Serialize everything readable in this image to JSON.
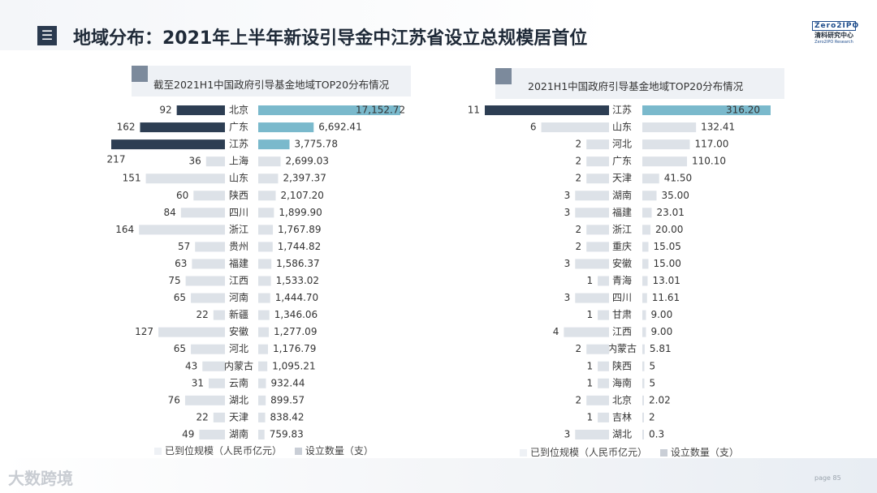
{
  "header": {
    "menu_icon": "menu-icon",
    "title": "地域分布：2021年上半年新设引导金中江苏省设立总规模居首位",
    "logo_line1": "Zero2IPO",
    "logo_line2": "清科研究中心",
    "logo_line3": "Zero2IPO Research"
  },
  "footer": {
    "brand": "大数跨境",
    "page": "page  85"
  },
  "colors": {
    "highlight_dark": "#2d3e53",
    "highlight_light": "#7ab9cc",
    "plain": "#dde2e8",
    "panel_bg": "#eef1f5"
  },
  "chart_data": [
    {
      "type": "bar",
      "title": "截至2021H1中国政府引导基金地域TOP20分布情况",
      "categories": [
        "北京",
        "广东",
        "江苏",
        "上海",
        "山东",
        "陕西",
        "四川",
        "浙江",
        "贵州",
        "福建",
        "江西",
        "河南",
        "新疆",
        "安徽",
        "河北",
        "内蒙古",
        "云南",
        "湖北",
        "天津",
        "湖南"
      ],
      "series": [
        {
          "name": "已到位规模（人民币亿元）",
          "values": [
            17152.72,
            6692.41,
            3775.78,
            2699.03,
            2397.37,
            2107.2,
            1899.9,
            1767.89,
            1744.82,
            1586.37,
            1533.02,
            1444.7,
            1346.06,
            1277.09,
            1176.79,
            1095.21,
            932.44,
            899.57,
            838.42,
            759.83
          ],
          "labels": [
            "17,152.72",
            "6,692.41",
            "3,775.78",
            "2,699.03",
            "2,397.37",
            "2,107.20",
            "1,899.90",
            "1,767.89",
            "1,744.82",
            "1,586.37",
            "1,533.02",
            "1,444.70",
            "1,346.06",
            "1,277.09",
            "1,176.79",
            "1,095.21",
            "932.44",
            "899.57",
            "838.42",
            "759.83"
          ]
        },
        {
          "name": "设立数量（支）",
          "values": [
            92,
            162,
            217,
            36,
            151,
            60,
            84,
            164,
            57,
            63,
            75,
            65,
            22,
            127,
            65,
            43,
            31,
            76,
            22,
            49
          ],
          "labels": [
            "92",
            "162",
            "217",
            "36",
            "151",
            "60",
            "84",
            "164",
            "57",
            "63",
            "75",
            "65",
            "22",
            "127",
            "65",
            "43",
            "31",
            "76",
            "22",
            "49"
          ]
        }
      ],
      "highlight_count": 3
    },
    {
      "type": "bar",
      "title": "2021H1中国政府引导基金地域TOP20分布情况",
      "categories": [
        "江苏",
        "山东",
        "河北",
        "广东",
        "天津",
        "湖南",
        "福建",
        "浙江",
        "重庆",
        "安徽",
        "青海",
        "四川",
        "甘肃",
        "江西",
        "内蒙古",
        "陕西",
        "海南",
        "北京",
        "吉林",
        "湖北"
      ],
      "series": [
        {
          "name": "已到位规模（人民币亿元）",
          "values": [
            316.2,
            132.41,
            117.0,
            110.1,
            41.5,
            35.0,
            23.01,
            20.0,
            15.05,
            15.0,
            13.01,
            11.61,
            9.0,
            9.0,
            5.81,
            5,
            5,
            2.02,
            2,
            0.3
          ],
          "labels": [
            "316.20",
            "132.41",
            "117.00",
            "110.10",
            "41.50",
            "35.00",
            "23.01",
            "20.00",
            "15.05",
            "15.00",
            "13.01",
            "11.61",
            "9.00",
            "9.00",
            "5.81",
            "5",
            "5",
            "2.02",
            "2",
            "0.3"
          ]
        },
        {
          "name": "设立数量（支）",
          "values": [
            11,
            6,
            2,
            2,
            2,
            3,
            3,
            2,
            2,
            3,
            1,
            3,
            1,
            4,
            2,
            1,
            1,
            2,
            1,
            3
          ],
          "labels": [
            "11",
            "6",
            "2",
            "2",
            "2",
            "3",
            "3",
            "2",
            "2",
            "3",
            "1",
            "3",
            "1",
            "4",
            "2",
            "1",
            "1",
            "2",
            "1",
            "3"
          ]
        }
      ],
      "highlight_count": 1
    }
  ]
}
